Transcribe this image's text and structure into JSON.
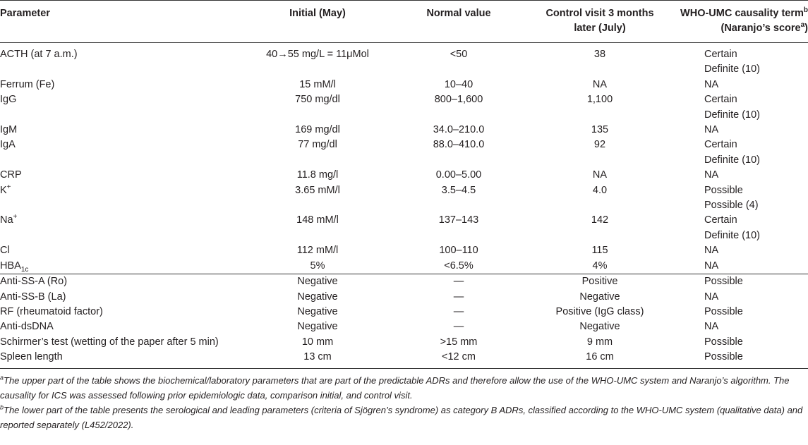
{
  "headers": {
    "parameter": "Parameter",
    "initial": "Initial (May)",
    "normal": "Normal value",
    "control_line1": "Control visit 3 months",
    "control_line2": "later (July)",
    "who_line1": "WHO-UMC causality term",
    "who_sup": "b",
    "who_line2_pre": "(Naranjo’s score",
    "who_line2_sup": "a",
    "who_line2_post": ")"
  },
  "rows_upper": [
    {
      "param": "ACTH (at 7 a.m.)",
      "initial": "40→55 mg/L = 11μMol",
      "normal": "<50",
      "control": "38",
      "causality": "Certain",
      "naranjo": "Definite (10)"
    },
    {
      "param": "Ferrum (Fe)",
      "initial": "15 mM/l",
      "normal": "10–40",
      "control": "NA",
      "causality": "NA",
      "naranjo": ""
    },
    {
      "param": "IgG",
      "initial": "750 mg/dl",
      "normal": "800–1,600",
      "control": "1,100",
      "causality": "Certain",
      "naranjo": "Definite (10)"
    },
    {
      "param": "IgM",
      "initial": "169 mg/dl",
      "normal": "34.0–210.0",
      "control": "135",
      "causality": "NA",
      "naranjo": ""
    },
    {
      "param": "IgA",
      "initial": "77 mg/dl",
      "normal": "88.0–410.0",
      "control": "92",
      "causality": "Certain",
      "naranjo": "Definite (10)"
    },
    {
      "param": "CRP",
      "initial": "11.8 mg/l",
      "normal": "0.00–5.00",
      "control": "NA",
      "causality": "NA",
      "naranjo": ""
    },
    {
      "param": "K",
      "param_sup": "+",
      "initial": "3.65 mM/l",
      "normal": "3.5–4.5",
      "control": "4.0",
      "causality": "Possible",
      "naranjo": "Possible (4)"
    },
    {
      "param": "Na",
      "param_sup": "+",
      "initial": "148 mM/l",
      "normal": "137–143",
      "control": "142",
      "causality": "Certain",
      "naranjo": "Definite (10)"
    },
    {
      "param": "Cl",
      "initial": "112 mM/l",
      "normal": "100–110",
      "control": "115",
      "causality": "NA",
      "naranjo": ""
    },
    {
      "param": "HBA",
      "param_sub": "1c",
      "initial": "5%",
      "normal": "<6.5%",
      "control": "4%",
      "causality": "NA",
      "naranjo": ""
    }
  ],
  "rows_lower": [
    {
      "param": "Anti-SS-A (Ro)",
      "initial": "Negative",
      "normal": "—",
      "control": "Positive",
      "causality": "Possible"
    },
    {
      "param": "Anti-SS-B (La)",
      "initial": "Negative",
      "normal": "—",
      "control": "Negative",
      "causality": "NA"
    },
    {
      "param": "RF (rheumatoid factor)",
      "initial": "Negative",
      "normal": "—",
      "control": "Positive (IgG class)",
      "causality": "Possible"
    },
    {
      "param": "Anti-dsDNA",
      "initial": "Negative",
      "normal": "—",
      "control": "Negative",
      "causality": "NA"
    },
    {
      "param": "Schirmer’s test (wetting of the paper after 5 min)",
      "initial": "10 mm",
      "normal": ">15 mm",
      "control": "9 mm",
      "causality": "Possible"
    },
    {
      "param": "Spleen length",
      "initial": "13 cm",
      "normal": "<12 cm",
      "control": "16 cm",
      "causality": "Possible"
    }
  ],
  "footnotes": {
    "a_marker": "a",
    "a_text": "The upper part of the table shows the biochemical/laboratory parameters that are part of the predictable ADRs and therefore allow the use of the WHO-UMC system and Naranjo’s algorithm. The causality for ICS was assessed following prior epidemiologic data, comparison initial, and control visit.",
    "b_marker": "b",
    "b_text": "The lower part of the table presents the serological and leading parameters (criteria of Sjögren’s syndrome) as category B ADRs, classified according to the WHO-UMC system (qualitative data) and reported separately (L452/2022)."
  }
}
